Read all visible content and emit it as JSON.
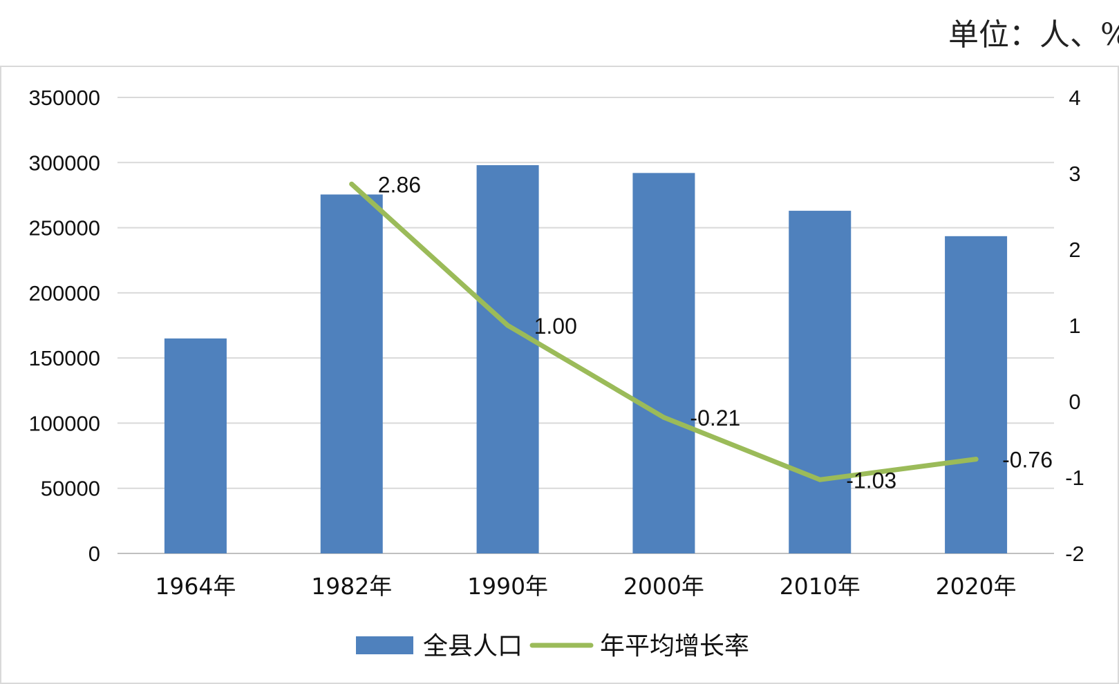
{
  "unit": "单位：人、%",
  "chart_data": {
    "type": "bar+line",
    "categories": [
      "1964年",
      "1982年",
      "1990年",
      "2000年",
      "2010年",
      "2020年"
    ],
    "series": [
      {
        "name": "全县人口",
        "type": "bar",
        "axis": "left",
        "color": "#4f81bd",
        "values": [
          165000,
          275500,
          298000,
          292000,
          263000,
          243500
        ]
      },
      {
        "name": "年平均增长率",
        "type": "line",
        "axis": "right",
        "color": "#9bbb59",
        "values": [
          null,
          2.86,
          1.0,
          -0.21,
          -1.03,
          -0.76
        ],
        "labels": [
          "",
          "2.86",
          "1.00",
          "-0.21",
          "-1.03",
          "-0.76"
        ]
      }
    ],
    "y_left": {
      "min": 0,
      "max": 350000,
      "ticks": [
        "0",
        "50000",
        "100000",
        "150000",
        "200000",
        "250000",
        "300000",
        "350000"
      ]
    },
    "y_right": {
      "min": -2,
      "max": 4,
      "ticks": [
        "-2",
        "-1",
        "0",
        "1",
        "2",
        "3",
        "4"
      ]
    },
    "grid": true,
    "legend": "bottom"
  }
}
